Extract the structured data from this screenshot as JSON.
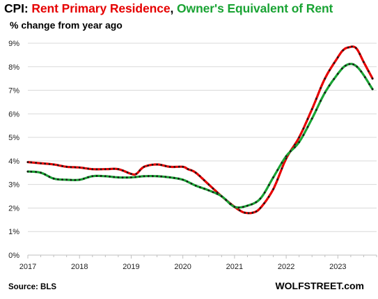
{
  "header": {
    "title_prefix": "CPI: ",
    "title_series1": "Rent Primary  Residence",
    "title_sep": ", ",
    "title_series2": "Owner's Equivalent of Rent",
    "subtitle": "% change from year ago"
  },
  "footer": {
    "source": "Source: BLS",
    "watermark": "WOLFSTREET.com"
  },
  "colors": {
    "rent": "#e60000",
    "oer": "#19a333",
    "marker": "#1a1a1a",
    "grid": "#d9d9d9",
    "axis": "#bfbfbf"
  },
  "chart_data": {
    "type": "line",
    "title": "CPI: Rent Primary  Residence, Owner's Equivalent of Rent",
    "subtitle": "% change from year ago",
    "ylim": [
      0,
      9
    ],
    "xlim": [
      2017,
      2023.75
    ],
    "y_ticks": [
      "0%",
      "1%",
      "2%",
      "3%",
      "4%",
      "5%",
      "6%",
      "7%",
      "8%",
      "9%"
    ],
    "x_ticks": [
      "2017",
      "2018",
      "2019",
      "2020",
      "2021",
      "2022",
      "2023"
    ],
    "grid": "horizontal",
    "series": [
      {
        "name": "Rent Primary  Residence",
        "color": "#e60000",
        "x": [
          2017.0,
          2017.25,
          2017.5,
          2017.75,
          2018.0,
          2018.25,
          2018.5,
          2018.75,
          2019.0,
          2019.1,
          2019.25,
          2019.5,
          2019.75,
          2020.0,
          2020.1,
          2020.25,
          2020.5,
          2020.75,
          2021.0,
          2021.1,
          2021.2,
          2021.35,
          2021.5,
          2021.75,
          2022.0,
          2022.25,
          2022.5,
          2022.75,
          2023.0,
          2023.1,
          2023.2,
          2023.35,
          2023.5,
          2023.67
        ],
        "values": [
          3.95,
          3.9,
          3.85,
          3.75,
          3.72,
          3.65,
          3.65,
          3.65,
          3.45,
          3.45,
          3.75,
          3.85,
          3.75,
          3.75,
          3.65,
          3.5,
          3.0,
          2.5,
          2.05,
          1.9,
          1.8,
          1.8,
          2.0,
          2.8,
          4.1,
          5.0,
          6.2,
          7.5,
          8.4,
          8.7,
          8.82,
          8.8,
          8.2,
          7.5
        ]
      },
      {
        "name": "Owner's Equivalent of Rent",
        "color": "#19a333",
        "x": [
          2017.0,
          2017.25,
          2017.5,
          2017.75,
          2018.0,
          2018.25,
          2018.5,
          2018.75,
          2019.0,
          2019.25,
          2019.5,
          2019.75,
          2020.0,
          2020.25,
          2020.5,
          2020.75,
          2021.0,
          2021.25,
          2021.5,
          2021.75,
          2022.0,
          2022.25,
          2022.5,
          2022.75,
          2023.0,
          2023.15,
          2023.3,
          2023.45,
          2023.67
        ],
        "values": [
          3.55,
          3.5,
          3.25,
          3.2,
          3.2,
          3.35,
          3.35,
          3.3,
          3.3,
          3.35,
          3.35,
          3.3,
          3.2,
          2.95,
          2.75,
          2.5,
          2.05,
          2.1,
          2.4,
          3.3,
          4.2,
          4.8,
          5.8,
          6.9,
          7.7,
          8.05,
          8.1,
          7.8,
          7.05
        ]
      }
    ]
  }
}
